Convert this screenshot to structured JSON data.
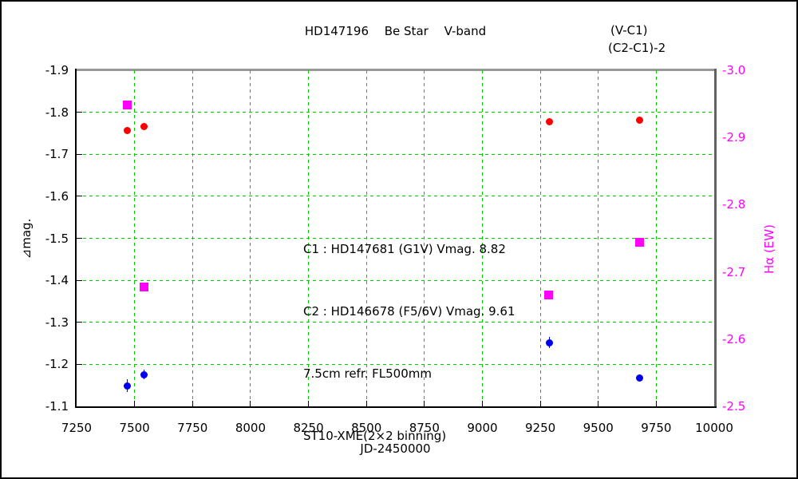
{
  "chart_data": {
    "type": "scatter",
    "title": "HD147196　 Be Star 　V-band",
    "xlabel": "JD-2450000",
    "ylabel_left": "⊿mag.",
    "ylabel_right": "Hα (EW)",
    "xlim": [
      7250,
      10000
    ],
    "ylim_left": [
      -1.9,
      -1.1
    ],
    "ylim_right": [
      -3.0,
      -2.5
    ],
    "x_ticks": [
      {
        "v": 7250,
        "label": "7250"
      },
      {
        "v": 7500,
        "label": "7500"
      },
      {
        "v": 7750,
        "label": "7750"
      },
      {
        "v": 8000,
        "label": "8000"
      },
      {
        "v": 8250,
        "label": "8250"
      },
      {
        "v": 8500,
        "label": "8500"
      },
      {
        "v": 8750,
        "label": "8750"
      },
      {
        "v": 9000,
        "label": "9000"
      },
      {
        "v": 9250,
        "label": "9250"
      },
      {
        "v": 9500,
        "label": "9500"
      },
      {
        "v": 9750,
        "label": "9750"
      },
      {
        "v": 10000,
        "label": "10000"
      }
    ],
    "y_ticks_left": [
      {
        "v": -1.9,
        "label": "-1.9"
      },
      {
        "v": -1.8,
        "label": "-1.8"
      },
      {
        "v": -1.7,
        "label": "-1.7"
      },
      {
        "v": -1.6,
        "label": "-1.6"
      },
      {
        "v": -1.5,
        "label": "-1.5"
      },
      {
        "v": -1.4,
        "label": "-1.4"
      },
      {
        "v": -1.3,
        "label": "-1.3"
      },
      {
        "v": -1.2,
        "label": "-1.2"
      },
      {
        "v": -1.1,
        "label": "-1.1"
      }
    ],
    "y_ticks_right": [
      {
        "v": -3.0,
        "label": "-3.0"
      },
      {
        "v": -2.9,
        "label": "-2.9"
      },
      {
        "v": -2.8,
        "label": "-2.8"
      },
      {
        "v": -2.7,
        "label": "-2.7"
      },
      {
        "v": -2.6,
        "label": "-2.6"
      },
      {
        "v": -2.5,
        "label": "-2.5"
      }
    ],
    "grid": {
      "color": "#00CC00",
      "style": "dashed",
      "x_values": [
        7500,
        7750,
        8000,
        8250,
        8500,
        8750,
        9000,
        9250,
        9500,
        9750
      ],
      "y_values_left": [
        -1.8,
        -1.7,
        -1.6,
        -1.5,
        -1.4,
        -1.3,
        -1.2
      ]
    },
    "legend_position": "top-right",
    "series": [
      {
        "name": "(V-C1)",
        "key": "v-c1",
        "axis": "left",
        "marker": "circle",
        "marker_size": 9,
        "color": "#FF0000",
        "points": [
          {
            "x": 7470,
            "y": -1.757
          },
          {
            "x": 7540,
            "y": -1.766
          },
          {
            "x": 9288,
            "y": -1.777
          },
          {
            "x": 9678,
            "y": -1.781
          }
        ]
      },
      {
        "name": "(C2-C1)-2",
        "key": "c2-c1",
        "axis": "left",
        "marker": "circle",
        "marker_size": 9,
        "color": "#0000EE",
        "points": [
          {
            "x": 7470,
            "y": -1.149,
            "err": 0.015
          },
          {
            "x": 7540,
            "y": -1.176,
            "err": 0.011
          },
          {
            "x": 9288,
            "y": -1.252,
            "err": 0.013
          },
          {
            "x": 9678,
            "y": -1.168
          }
        ]
      },
      {
        "name": "Hα (EW)",
        "key": "halpha-ew",
        "axis": "right",
        "marker": "square",
        "marker_size": 11,
        "color": "#FF00FF",
        "points": [
          {
            "x": 7470,
            "y": -2.948
          },
          {
            "x": 7542,
            "y": -2.678
          },
          {
            "x": 9285,
            "y": -2.666
          },
          {
            "x": 9678,
            "y": -2.744
          }
        ]
      }
    ],
    "annotation_lines": [
      "C1 : HD147681 (G1V) Vmag. 8.82",
      "C2 : HD146678 (F5/6V) Vmag. 9.61",
      "7.5cm refr. FL500mm",
      "ST10-XME(2×2 binning)"
    ]
  }
}
